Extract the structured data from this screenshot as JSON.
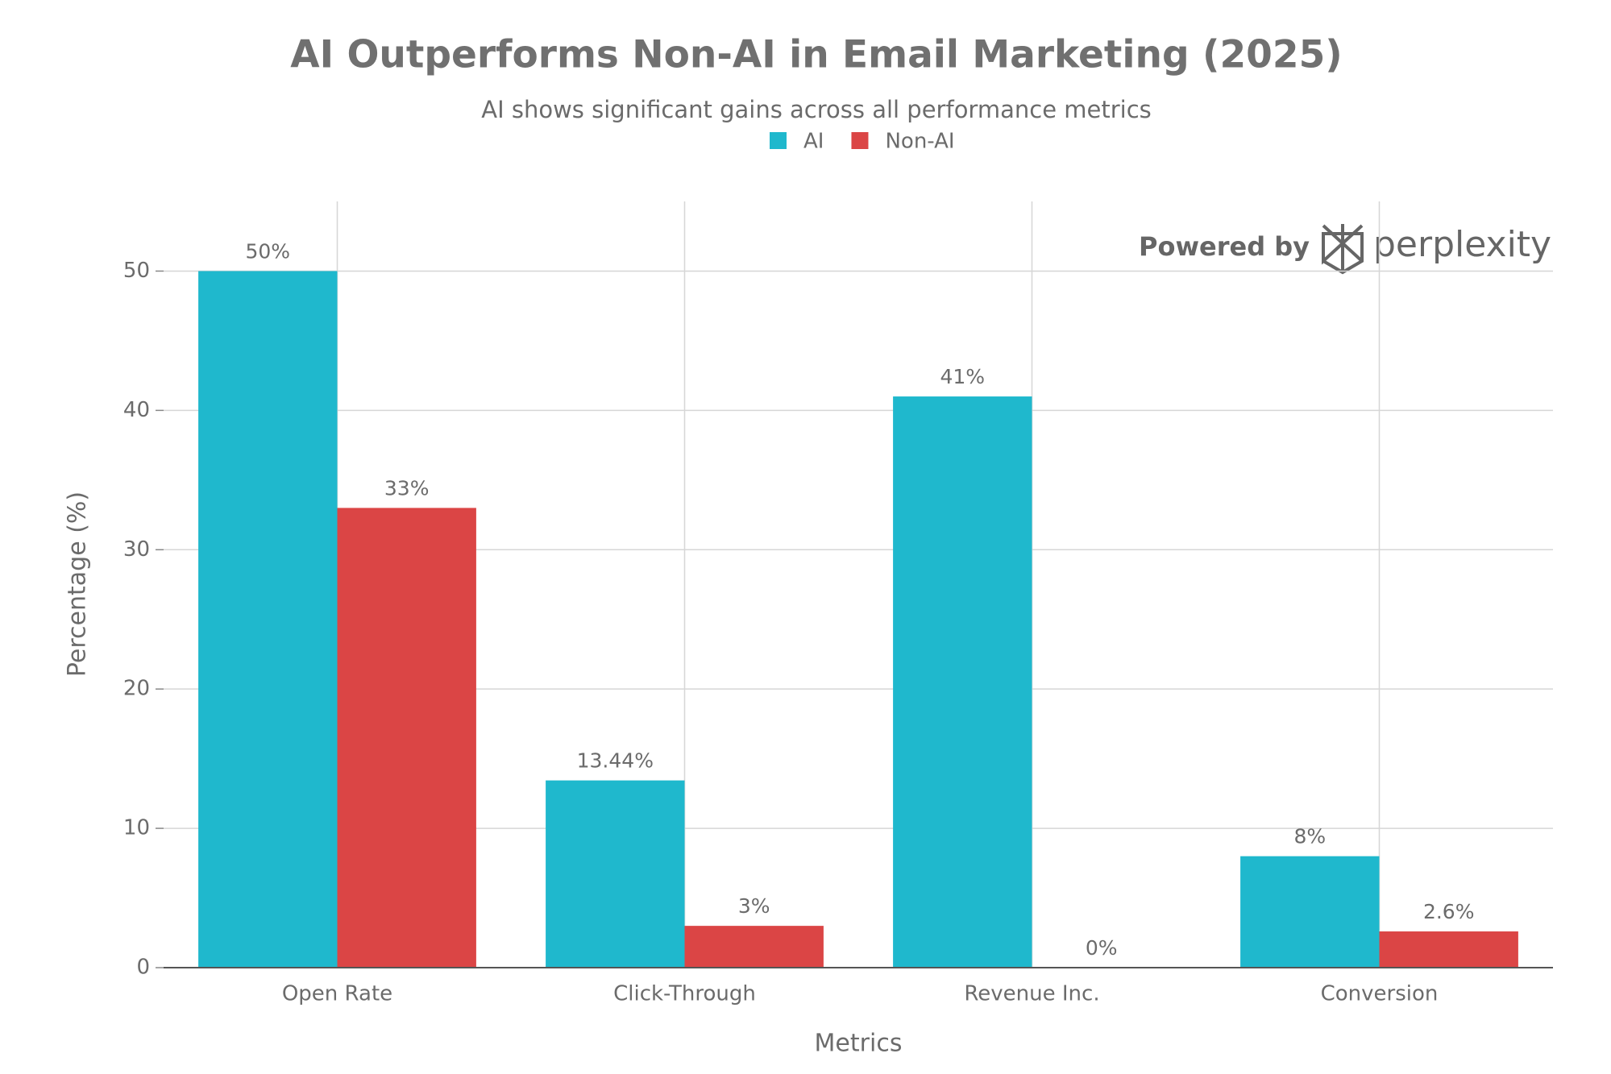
{
  "chart_data": {
    "type": "bar",
    "title": "AI Outperforms Non-AI in Email Marketing (2025)",
    "subtitle": "AI shows significant gains across all performance metrics",
    "x_label": "Metrics",
    "y_label": "Percentage (%)",
    "categories": [
      "Open Rate",
      "Click-Through",
      "Revenue Inc.",
      "Conversion"
    ],
    "series": [
      {
        "name": "AI",
        "color": "#1fb8cd",
        "values": [
          50,
          13.44,
          41,
          8
        ],
        "value_labels": [
          "50%",
          "13.44%",
          "41%",
          "8%"
        ]
      },
      {
        "name": "Non-AI",
        "color": "#db4545",
        "values": [
          33,
          3,
          0,
          2.6
        ],
        "value_labels": [
          "33%",
          "3%",
          "0%",
          "2.6%"
        ]
      }
    ],
    "ylim": [
      0,
      55
    ],
    "yticks": [
      0,
      10,
      20,
      30,
      40,
      50
    ],
    "grid": true,
    "legend": "top"
  },
  "watermark": {
    "prefix": "Powered by",
    "brand": "perplexity"
  }
}
